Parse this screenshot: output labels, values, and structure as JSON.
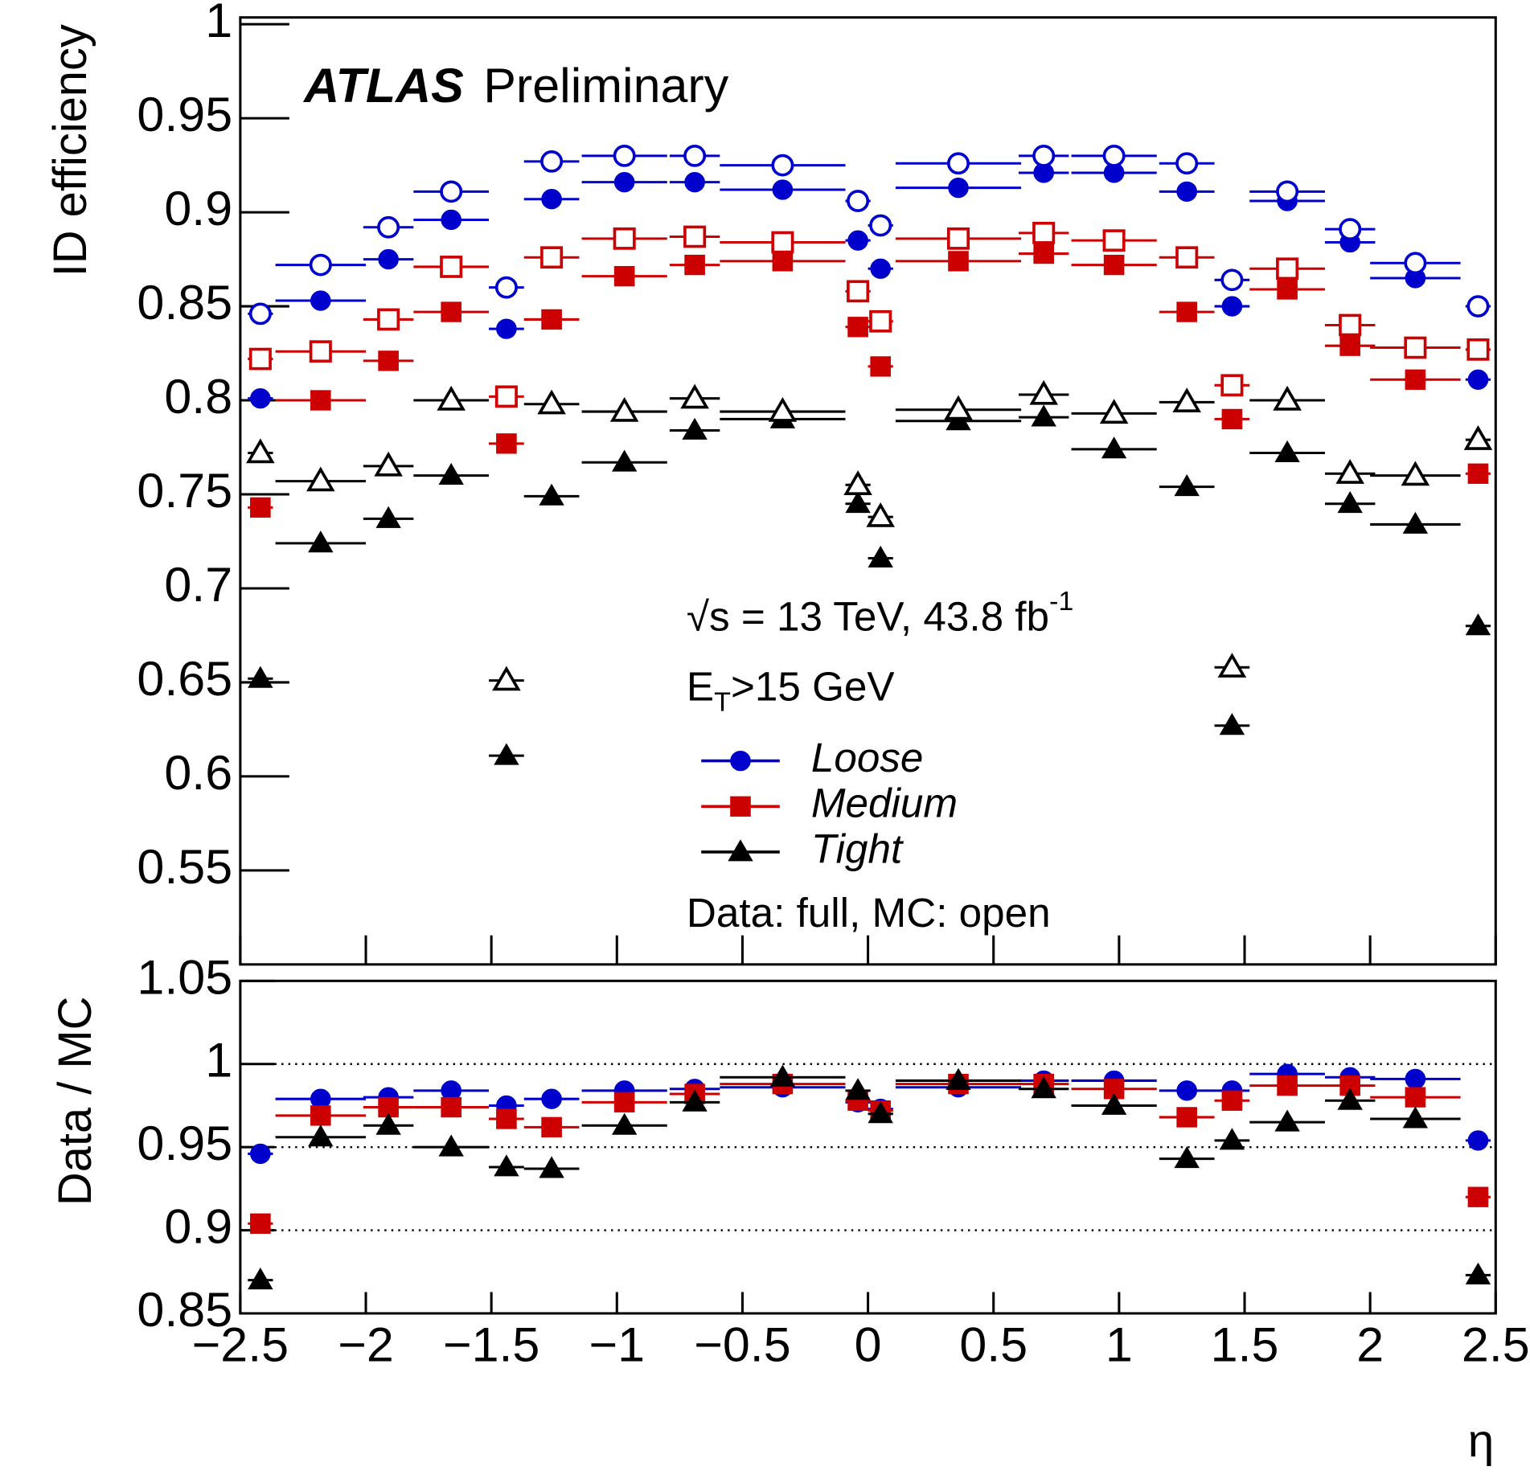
{
  "chart_data": [
    {
      "type": "scatter",
      "ylabel": "ID efficiency",
      "xlim": [
        -2.5,
        2.5
      ],
      "xticks": [
        -2.5,
        -2,
        -1.5,
        -1,
        -0.5,
        0,
        0.5,
        1,
        1.5,
        2,
        2.5
      ],
      "xtick_labels": false,
      "ylim": [
        0.5,
        1
      ],
      "yticks": [
        0.55,
        0.6,
        0.65,
        0.7,
        0.75,
        0.8,
        0.85,
        0.9,
        0.95,
        1
      ],
      "x": [
        -2.42,
        -2.18,
        -1.91,
        -1.66,
        -1.44,
        -1.26,
        -0.97,
        -0.69,
        -0.34,
        -0.04,
        0.05,
        0.36,
        0.7,
        0.98,
        1.27,
        1.45,
        1.67,
        1.92,
        2.18,
        2.43
      ],
      "xerr": [
        0.05,
        0.18,
        0.1,
        0.15,
        0.07,
        0.11,
        0.17,
        0.1,
        0.25,
        0.05,
        0.05,
        0.25,
        0.1,
        0.17,
        0.11,
        0.07,
        0.15,
        0.1,
        0.18,
        0.05
      ],
      "series": [
        {
          "name": "Loose",
          "color": "#0000cc",
          "marker": "circle",
          "values": [
            0.801,
            0.853,
            0.875,
            0.896,
            0.838,
            0.907,
            0.916,
            0.916,
            0.912,
            0.885,
            0.87,
            0.913,
            0.921,
            0.921,
            0.911,
            0.85,
            0.906,
            0.884,
            0.865,
            0.811
          ],
          "mc_values": [
            0.846,
            0.872,
            0.892,
            0.911,
            0.86,
            0.927,
            0.93,
            0.93,
            0.925,
            0.906,
            0.893,
            0.926,
            0.93,
            0.93,
            0.926,
            0.864,
            0.911,
            0.891,
            0.873,
            0.85
          ]
        },
        {
          "name": "Medium",
          "color": "#cc0000",
          "marker": "square",
          "values": [
            0.743,
            0.8,
            0.821,
            0.847,
            0.777,
            0.843,
            0.866,
            0.872,
            0.874,
            0.839,
            0.818,
            0.874,
            0.878,
            0.872,
            0.847,
            0.79,
            0.859,
            0.829,
            0.811,
            0.761
          ],
          "mc_values": [
            0.822,
            0.826,
            0.843,
            0.871,
            0.802,
            0.876,
            0.886,
            0.887,
            0.884,
            0.858,
            0.842,
            0.886,
            0.889,
            0.885,
            0.876,
            0.808,
            0.87,
            0.84,
            0.828,
            0.827
          ]
        },
        {
          "name": "Tight",
          "color": "#000000",
          "marker": "triangle",
          "values": [
            0.652,
            0.724,
            0.737,
            0.76,
            0.611,
            0.749,
            0.767,
            0.784,
            0.79,
            0.745,
            0.716,
            0.789,
            0.791,
            0.774,
            0.754,
            0.627,
            0.772,
            0.745,
            0.734,
            0.68
          ],
          "mc_values": [
            0.772,
            0.757,
            0.765,
            0.8,
            0.651,
            0.798,
            0.794,
            0.801,
            0.794,
            0.755,
            0.738,
            0.795,
            0.803,
            0.793,
            0.799,
            0.658,
            0.8,
            0.761,
            0.76,
            0.779
          ]
        }
      ],
      "annotations": {
        "experiment": "ATLAS",
        "status": "Preliminary",
        "energy": {
          "text": "√s = 13 TeV, 43.8 fb",
          "sup": "-1"
        },
        "cut": {
          "text": "E",
          "sub": "T",
          "rest": ">15 GeV"
        },
        "note": "Data: full, MC: open"
      }
    },
    {
      "type": "scatter",
      "ylabel": "Data / MC",
      "xlabel": "η",
      "xlim": [
        -2.5,
        2.5
      ],
      "xticks": [
        {
          "value": -2.5,
          "label": "−2.5"
        },
        {
          "value": -2,
          "label": "−2"
        },
        {
          "value": -1.5,
          "label": "−1.5"
        },
        {
          "value": -1,
          "label": "−1"
        },
        {
          "value": -0.5,
          "label": "−0.5"
        },
        0,
        0.5,
        1,
        1.5,
        2,
        2.5
      ],
      "ylim": [
        0.85,
        1.05
      ],
      "yticks": [
        0.85,
        0.9,
        0.95,
        1,
        1.05
      ],
      "grid": "dotted",
      "x": [
        -2.42,
        -2.18,
        -1.91,
        -1.66,
        -1.44,
        -1.26,
        -0.97,
        -0.69,
        -0.34,
        -0.04,
        0.05,
        0.36,
        0.7,
        0.98,
        1.27,
        1.45,
        1.67,
        1.92,
        2.18,
        2.43
      ],
      "xerr": [
        0.05,
        0.18,
        0.1,
        0.15,
        0.07,
        0.11,
        0.17,
        0.1,
        0.25,
        0.05,
        0.05,
        0.25,
        0.1,
        0.17,
        0.11,
        0.07,
        0.15,
        0.1,
        0.18,
        0.05
      ],
      "series": [
        {
          "color": "#0000cc",
          "marker": "circle",
          "values": [
            0.946,
            0.979,
            0.98,
            0.984,
            0.975,
            0.979,
            0.984,
            0.985,
            0.986,
            0.977,
            0.973,
            0.986,
            0.99,
            0.99,
            0.984,
            0.984,
            0.994,
            0.992,
            0.991,
            0.954
          ]
        },
        {
          "color": "#cc0000",
          "marker": "square",
          "values": [
            0.904,
            0.969,
            0.974,
            0.974,
            0.967,
            0.962,
            0.977,
            0.982,
            0.988,
            0.978,
            0.972,
            0.988,
            0.988,
            0.985,
            0.968,
            0.978,
            0.987,
            0.987,
            0.98,
            0.92
          ]
        },
        {
          "color": "#000000",
          "marker": "triangle",
          "values": [
            0.87,
            0.956,
            0.963,
            0.95,
            0.938,
            0.937,
            0.963,
            0.977,
            0.992,
            0.984,
            0.97,
            0.99,
            0.985,
            0.975,
            0.943,
            0.954,
            0.965,
            0.978,
            0.967,
            0.873
          ]
        }
      ]
    }
  ]
}
